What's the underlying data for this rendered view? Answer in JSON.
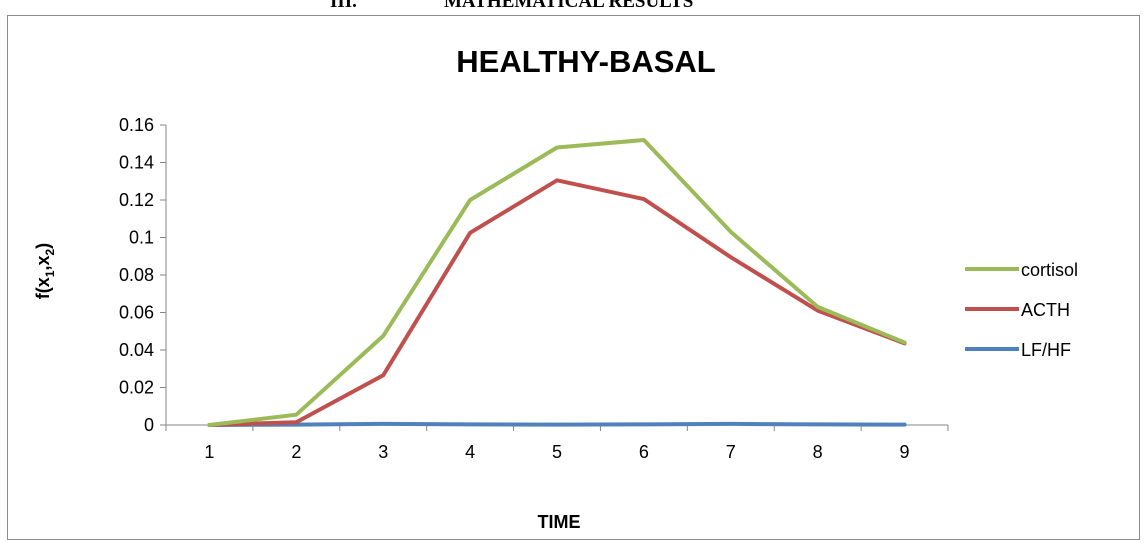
{
  "page": {
    "heading_number": "III.",
    "heading_text": "MATHEMATICAL RESULTS"
  },
  "chart_data": {
    "type": "line",
    "title": "HEALTHY-BASAL",
    "xlabel": "TIME",
    "ylabel_main": "f(x",
    "ylabel_sub1": "1",
    "ylabel_mid": ",x",
    "ylabel_sub2": "2",
    "ylabel_end": ")",
    "categories": [
      "1",
      "2",
      "3",
      "4",
      "5",
      "6",
      "7",
      "8",
      "9"
    ],
    "ylim": [
      0,
      0.16
    ],
    "yticks": [
      "0",
      "0.02",
      "0.04",
      "0.06",
      "0.08",
      "0.1",
      "0.12",
      "0.14",
      "0.16"
    ],
    "grid": false,
    "legend_position": "right",
    "series": [
      {
        "name": "cortisol",
        "color": "#9BBB59",
        "values": [
          0.0,
          0.0055,
          0.0475,
          0.12,
          0.148,
          0.152,
          0.103,
          0.063,
          0.044
        ]
      },
      {
        "name": "ACTH",
        "color": "#C0504D",
        "values": [
          0.0,
          0.0015,
          0.0265,
          0.1025,
          0.1305,
          0.1205,
          0.0895,
          0.061,
          0.0435
        ]
      },
      {
        "name": "LF/HF",
        "color": "#4F81BD",
        "values": [
          0.0,
          0.0002,
          0.0006,
          0.0003,
          0.0002,
          0.0003,
          0.0006,
          0.0003,
          0.0002
        ]
      }
    ]
  }
}
